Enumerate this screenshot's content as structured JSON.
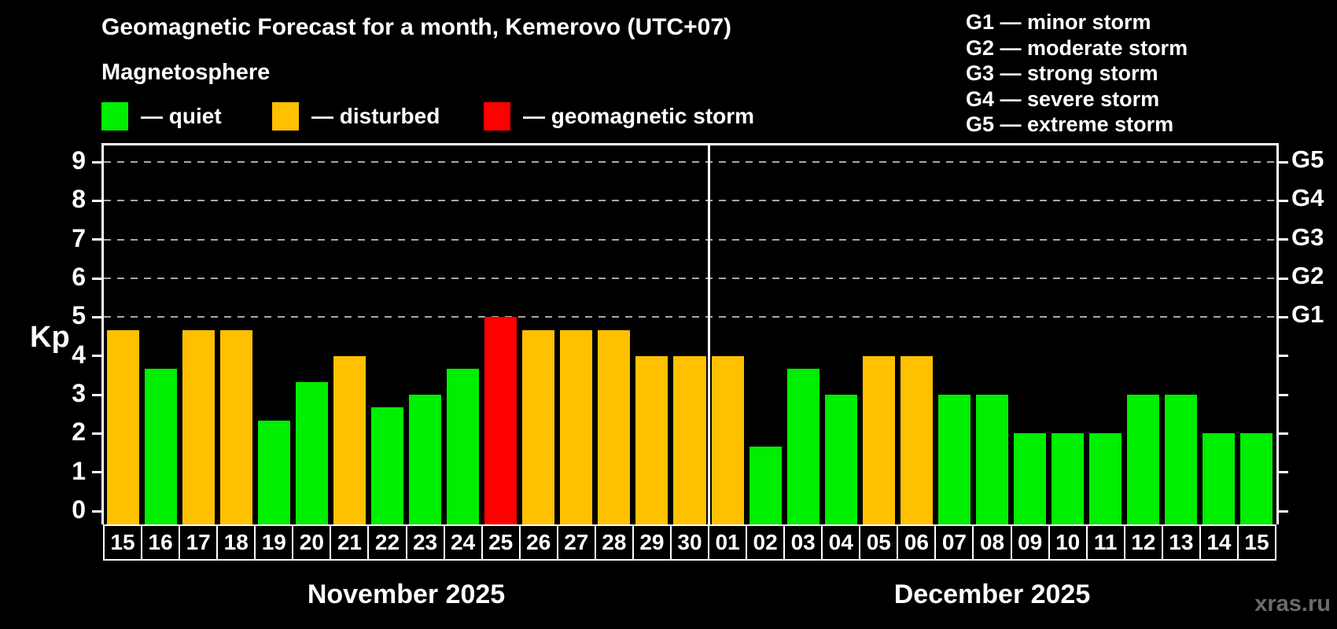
{
  "title": "Geomagnetic Forecast for a month, Kemerovo (UTC+07)",
  "subtitle": "Magnetosphere",
  "legend": {
    "items": [
      {
        "label": "— quiet",
        "color_key": "quiet"
      },
      {
        "label": "— disturbed",
        "color_key": "disturbed"
      },
      {
        "label": "— geomagnetic storm",
        "color_key": "storm"
      }
    ]
  },
  "storm_scale_legend": [
    "G1 — minor storm",
    "G2 — moderate storm",
    "G3 — strong storm",
    "G4 — severe storm",
    "G5 — extreme storm"
  ],
  "watermark": "xras.ru",
  "colors": {
    "quiet": "#00ee00",
    "disturbed": "#ffc000",
    "storm": "#ff0000",
    "background": "#000000",
    "axis": "#ffffff",
    "grid": "#a8a8a8",
    "watermark": "#6b6b6b"
  },
  "chart_data": {
    "type": "bar",
    "title": "Geomagnetic Forecast for a month, Kemerovo (UTC+07)",
    "subtitle": "Magnetosphere",
    "ylabel": "Kp",
    "ylim": [
      0,
      9
    ],
    "yticks": [
      0,
      1,
      2,
      3,
      4,
      5,
      6,
      7,
      8,
      9
    ],
    "grid": "dashed-at-storm-levels",
    "grid_levels": [
      {
        "kp": 5,
        "label": "G1"
      },
      {
        "kp": 6,
        "label": "G2"
      },
      {
        "kp": 7,
        "label": "G3"
      },
      {
        "kp": 8,
        "label": "G4"
      },
      {
        "kp": 9,
        "label": "G5"
      }
    ],
    "months": [
      {
        "label": "November 2025",
        "bars": [
          {
            "day": "15",
            "kp": 4.67,
            "level": "disturbed"
          },
          {
            "day": "16",
            "kp": 3.67,
            "level": "quiet"
          },
          {
            "day": "17",
            "kp": 4.67,
            "level": "disturbed"
          },
          {
            "day": "18",
            "kp": 4.67,
            "level": "disturbed"
          },
          {
            "day": "19",
            "kp": 2.33,
            "level": "quiet"
          },
          {
            "day": "20",
            "kp": 3.33,
            "level": "quiet"
          },
          {
            "day": "21",
            "kp": 4.0,
            "level": "disturbed"
          },
          {
            "day": "22",
            "kp": 2.67,
            "level": "quiet"
          },
          {
            "day": "23",
            "kp": 3.0,
            "level": "quiet"
          },
          {
            "day": "24",
            "kp": 3.67,
            "level": "quiet"
          },
          {
            "day": "25",
            "kp": 5.0,
            "level": "storm"
          },
          {
            "day": "26",
            "kp": 4.67,
            "level": "disturbed"
          },
          {
            "day": "27",
            "kp": 4.67,
            "level": "disturbed"
          },
          {
            "day": "28",
            "kp": 4.67,
            "level": "disturbed"
          },
          {
            "day": "29",
            "kp": 4.0,
            "level": "disturbed"
          },
          {
            "day": "30",
            "kp": 4.0,
            "level": "disturbed"
          }
        ]
      },
      {
        "label": "December 2025",
        "bars": [
          {
            "day": "01",
            "kp": 4.0,
            "level": "disturbed"
          },
          {
            "day": "02",
            "kp": 1.67,
            "level": "quiet"
          },
          {
            "day": "03",
            "kp": 3.67,
            "level": "quiet"
          },
          {
            "day": "04",
            "kp": 3.0,
            "level": "quiet"
          },
          {
            "day": "05",
            "kp": 4.0,
            "level": "disturbed"
          },
          {
            "day": "06",
            "kp": 4.0,
            "level": "disturbed"
          },
          {
            "day": "07",
            "kp": 3.0,
            "level": "quiet"
          },
          {
            "day": "08",
            "kp": 3.0,
            "level": "quiet"
          },
          {
            "day": "09",
            "kp": 2.0,
            "level": "quiet"
          },
          {
            "day": "10",
            "kp": 2.0,
            "level": "quiet"
          },
          {
            "day": "11",
            "kp": 2.0,
            "level": "quiet"
          },
          {
            "day": "12",
            "kp": 3.0,
            "level": "quiet"
          },
          {
            "day": "13",
            "kp": 3.0,
            "level": "quiet"
          },
          {
            "day": "14",
            "kp": 2.0,
            "level": "quiet"
          },
          {
            "day": "15",
            "kp": 2.0,
            "level": "quiet"
          }
        ]
      }
    ]
  }
}
